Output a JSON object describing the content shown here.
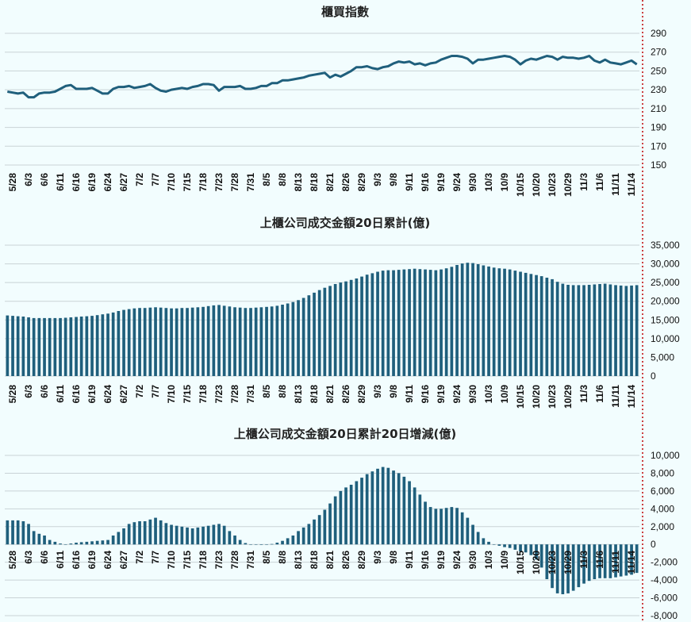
{
  "colors": {
    "series": "#1f5f7c",
    "grid": "#c9d3d6",
    "marker": "#c00000",
    "background": "#f2fdfe"
  },
  "x_ticks": [
    "5/28",
    "6/3",
    "6/6",
    "6/11",
    "6/16",
    "6/19",
    "6/24",
    "6/27",
    "7/2",
    "7/7",
    "7/10",
    "7/15",
    "7/18",
    "7/23",
    "7/28",
    "7/31",
    "8/5",
    "8/8",
    "8/13",
    "8/18",
    "8/21",
    "8/26",
    "8/29",
    "9/3",
    "9/8",
    "9/11",
    "9/16",
    "9/19",
    "9/24",
    "9/30",
    "10/3",
    "10/9",
    "10/15",
    "10/20",
    "10/23",
    "10/29",
    "11/3",
    "11/6",
    "11/11",
    "11/14"
  ],
  "chart_data": [
    {
      "type": "line",
      "title": "櫃買指數",
      "ylim": [
        150,
        290
      ],
      "yticks": [
        150,
        170,
        190,
        210,
        230,
        250,
        270,
        290
      ],
      "values": [
        228,
        227,
        226,
        227,
        222,
        222,
        226,
        227,
        227,
        228,
        231,
        234,
        235,
        231,
        231,
        231,
        232,
        229,
        226,
        226,
        231,
        233,
        233,
        234,
        232,
        233,
        234,
        236,
        232,
        229,
        228,
        230,
        231,
        232,
        231,
        233,
        234,
        236,
        236,
        235,
        229,
        233,
        233,
        233,
        234,
        231,
        231,
        232,
        234,
        234,
        237,
        237,
        240,
        240,
        241,
        242,
        243,
        245,
        246,
        247,
        248,
        243,
        246,
        244,
        247,
        250,
        254,
        254,
        255,
        253,
        252,
        254,
        255,
        258,
        260,
        259,
        260,
        257,
        258,
        256,
        258,
        259,
        262,
        264,
        266,
        266,
        265,
        263,
        258,
        262,
        262,
        263,
        264,
        265,
        266,
        265,
        262,
        257,
        261,
        263,
        262,
        264,
        266,
        265,
        262,
        265,
        264,
        264,
        263,
        264,
        266,
        261,
        259,
        262,
        259,
        258,
        257,
        259,
        261,
        257
      ]
    },
    {
      "type": "bar",
      "title": "上櫃公司成交金額20日累計(億)",
      "ylim": [
        0,
        35000
      ],
      "yticks": [
        0,
        5000,
        10000,
        15000,
        20000,
        25000,
        30000,
        35000
      ],
      "ytick_labels": [
        "0",
        "5,000",
        "10,000",
        "15,000",
        "20,000",
        "25,000",
        "30,000",
        "35,000"
      ],
      "values": [
        16200,
        16100,
        16000,
        15900,
        15700,
        15500,
        15500,
        15500,
        15500,
        15500,
        15500,
        15600,
        15700,
        15800,
        15900,
        16000,
        16100,
        16300,
        16500,
        16700,
        17000,
        17400,
        17700,
        17900,
        18100,
        18200,
        18200,
        18300,
        18400,
        18300,
        18200,
        18100,
        18100,
        18200,
        18200,
        18300,
        18400,
        18500,
        18700,
        18900,
        19000,
        18800,
        18600,
        18400,
        18300,
        18200,
        18200,
        18300,
        18400,
        18500,
        18600,
        18800,
        19100,
        19400,
        19800,
        20300,
        20900,
        21600,
        22300,
        23000,
        23600,
        24100,
        24600,
        25000,
        25300,
        25700,
        26100,
        26600,
        27100,
        27500,
        27900,
        28200,
        28300,
        28300,
        28400,
        28500,
        28600,
        28700,
        28600,
        28500,
        28400,
        28300,
        28500,
        28800,
        29200,
        29700,
        30100,
        30300,
        30200,
        29900,
        29600,
        29300,
        29000,
        28800,
        28700,
        28500,
        28200,
        27900,
        27600,
        27300,
        27000,
        26700,
        26300,
        25900,
        25200,
        24700,
        24400,
        24300,
        24300,
        24300,
        24400,
        24500,
        24600,
        24700,
        24500,
        24300,
        24200,
        24100,
        24200,
        24300
      ]
    },
    {
      "type": "bar",
      "title": "上櫃公司成交金額20日累計20日增減(億)",
      "ylim": [
        -8000,
        10000
      ],
      "yticks": [
        -8000,
        -6000,
        -4000,
        -2000,
        0,
        2000,
        4000,
        6000,
        8000,
        10000
      ],
      "ytick_labels": [
        "-8,000",
        "-6,000",
        "-4,000",
        "-2,000",
        "0",
        "2,000",
        "4,000",
        "6,000",
        "8,000",
        "10,000"
      ],
      "values": [
        2700,
        2700,
        2700,
        2600,
        2300,
        1500,
        1200,
        1000,
        500,
        300,
        100,
        0,
        100,
        200,
        250,
        300,
        350,
        400,
        450,
        500,
        1000,
        1400,
        1800,
        2300,
        2500,
        2600,
        2600,
        2800,
        3000,
        2700,
        2400,
        2200,
        2100,
        2000,
        1900,
        1800,
        1900,
        2000,
        2100,
        2200,
        2300,
        2100,
        1500,
        1000,
        500,
        150,
        0,
        0,
        -50,
        0,
        50,
        200,
        400,
        700,
        1000,
        1500,
        1900,
        2300,
        2800,
        3300,
        3900,
        4600,
        5400,
        6000,
        6400,
        6700,
        7100,
        7500,
        7900,
        8200,
        8500,
        8700,
        8600,
        8300,
        8000,
        7600,
        7100,
        6400,
        5600,
        4800,
        4200,
        4000,
        4000,
        4100,
        4200,
        4100,
        3600,
        3000,
        2200,
        1400,
        700,
        300,
        0,
        -150,
        -300,
        -400,
        -600,
        -800,
        -900,
        -1200,
        -1700,
        -2600,
        -3900,
        -4900,
        -5500,
        -5600,
        -5500,
        -5200,
        -4800,
        -4400,
        -4100,
        -3900,
        -3800,
        -3800,
        -3800,
        -3700,
        -3600,
        -3500,
        -3400,
        -3200
      ]
    }
  ]
}
